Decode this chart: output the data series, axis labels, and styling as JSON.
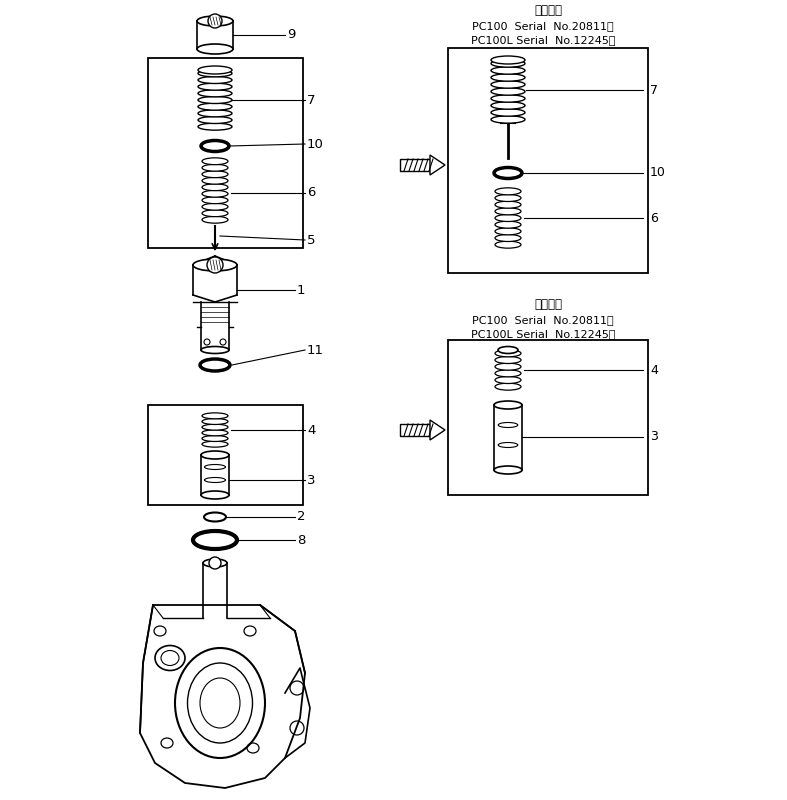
{
  "bg_color": "#ffffff",
  "line_color": "#000000",
  "title_top": "適用機種",
  "serial_line1": "PC100  Serial  No.20811～",
  "serial_line2": "PC100L Serial  No.12245～"
}
